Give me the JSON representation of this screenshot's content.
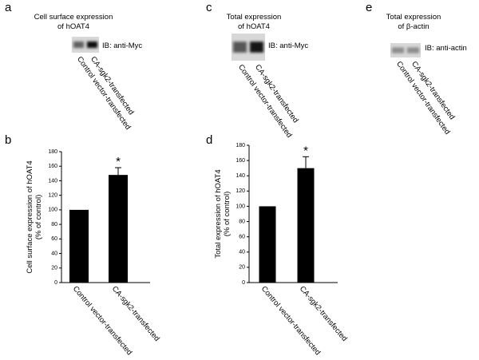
{
  "panels": [
    {
      "letter": "a",
      "title_lines": [
        "Cell surface expression",
        "of hOAT4"
      ],
      "antibody": "IB: anti-Myc",
      "lanes": [
        "Control vector-transfected",
        "CA-sgk2-transfected"
      ]
    },
    {
      "letter": "c",
      "title_lines": [
        "Total expression",
        "of hOAT4"
      ],
      "antibody": "IB: anti-Myc",
      "lanes": [
        "Control vector-transfected",
        "CA-sgk2-transfected"
      ]
    },
    {
      "letter": "e",
      "title_lines": [
        "Total expression",
        "of β-actin"
      ],
      "antibody": "IB: anti-actin",
      "lanes": [
        "Control vector-transfected",
        "CA-sgk2-transfected"
      ]
    }
  ],
  "chart_data": [
    {
      "letter": "b",
      "type": "bar",
      "ylabel_lines": [
        "Cell surface expression of hOAT4",
        "(% of control)"
      ],
      "categories": [
        "Control vector-transfected",
        "CA-sgk2-transfected"
      ],
      "values": [
        100,
        148
      ],
      "errors": [
        null,
        10
      ],
      "significance": [
        null,
        "*"
      ],
      "color": "#000000",
      "ylim": [
        0,
        180
      ],
      "yticks": [
        0,
        20,
        40,
        60,
        80,
        100,
        120,
        140,
        160,
        180
      ]
    },
    {
      "letter": "d",
      "type": "bar",
      "ylabel_lines": [
        "Total expression of hOAT4",
        "(% of control)"
      ],
      "categories": [
        "Control vector-transfected",
        "CA-sgk2-transfected"
      ],
      "values": [
        100,
        150
      ],
      "errors": [
        null,
        15
      ],
      "significance": [
        null,
        "*"
      ],
      "color": "#000000",
      "ylim": [
        0,
        180
      ],
      "yticks": [
        0,
        20,
        40,
        60,
        80,
        100,
        120,
        140,
        160,
        180
      ]
    }
  ]
}
